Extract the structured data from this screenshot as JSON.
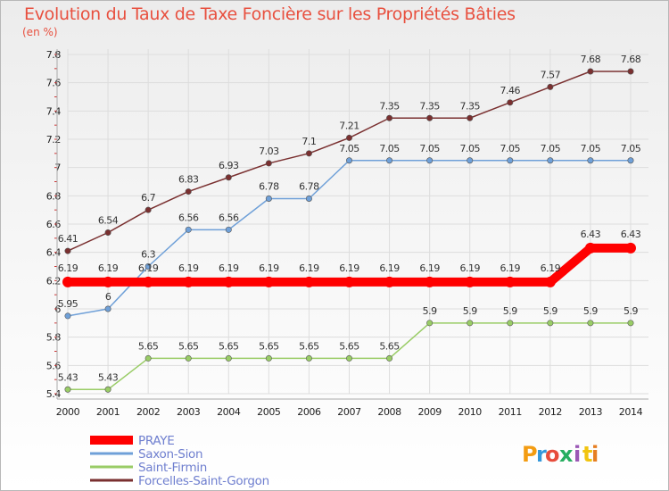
{
  "chart_data": {
    "type": "line",
    "title": "Evolution du Taux de Taxe Foncière sur les Propriétés Bâties",
    "subtitle": "(en %)",
    "categories": [
      "2000",
      "2001",
      "2002",
      "2003",
      "2004",
      "2005",
      "2006",
      "2007",
      "2008",
      "2009",
      "2010",
      "2011",
      "2012",
      "2013",
      "2014"
    ],
    "ylim": [
      5.4,
      7.8
    ],
    "yticks": [
      "5.4",
      "5.6",
      "5.8",
      "6",
      "6.2",
      "6.4",
      "6.6",
      "6.8",
      "7",
      "7.2",
      "7.4",
      "7.6",
      "7.8"
    ],
    "grid": true,
    "legend_position": "bottom-left",
    "series": [
      {
        "name": "PRAYE",
        "color": "#ff0000",
        "values": [
          6.19,
          6.19,
          6.19,
          6.19,
          6.19,
          6.19,
          6.19,
          6.19,
          6.19,
          6.19,
          6.19,
          6.19,
          6.19,
          6.43,
          6.43
        ],
        "labels": [
          "6.19",
          "6.19",
          "6.19",
          "6.19",
          "6.19",
          "6.19",
          "6.19",
          "6.19",
          "6.19",
          "6.19",
          "6.19",
          "6.19",
          "6.19",
          "6.43",
          "6.43"
        ]
      },
      {
        "name": "Saxon-Sion",
        "color": "#6fa0d8",
        "values": [
          5.95,
          6,
          6.3,
          6.56,
          6.56,
          6.78,
          6.78,
          7.05,
          7.05,
          7.05,
          7.05,
          7.05,
          7.05,
          7.05,
          7.05
        ],
        "labels": [
          "5.95",
          "6",
          "6.3",
          "6.56",
          "6.56",
          "6.78",
          "6.78",
          "7.05",
          "7.05",
          "7.05",
          "7.05",
          "7.05",
          "7.05",
          "7.05",
          "7.05"
        ]
      },
      {
        "name": "Saint-Firmin",
        "color": "#99cc66",
        "values": [
          5.43,
          5.43,
          5.65,
          5.65,
          5.65,
          5.65,
          5.65,
          5.65,
          5.65,
          5.9,
          5.9,
          5.9,
          5.9,
          5.9,
          5.9
        ],
        "labels": [
          "5.43",
          "5.43",
          "5.65",
          "5.65",
          "5.65",
          "5.65",
          "5.65",
          "5.65",
          "5.65",
          "5.9",
          "5.9",
          "5.9",
          "5.9",
          "5.9",
          "5.9"
        ]
      },
      {
        "name": "Forcelles-Saint-Gorgon",
        "color": "#7a3030",
        "values": [
          6.41,
          6.54,
          6.7,
          6.83,
          6.93,
          7.03,
          7.1,
          7.21,
          7.35,
          7.35,
          7.35,
          7.46,
          7.57,
          7.68,
          7.68
        ],
        "labels": [
          "6.41",
          "6.54",
          "6.7",
          "6.83",
          "6.93",
          "7.03",
          "7.1",
          "7.21",
          "7.35",
          "7.35",
          "7.35",
          "7.46",
          "7.57",
          "7.68",
          "7.68"
        ]
      }
    ]
  },
  "brand": {
    "letters": [
      "P",
      "r",
      "o",
      "x",
      "i",
      "t",
      "i"
    ],
    "colors": [
      "#f39c12",
      "#3498db",
      "#e74c3c",
      "#27ae60",
      "#9b59b6",
      "#f1c40f",
      "#e67e22"
    ]
  }
}
